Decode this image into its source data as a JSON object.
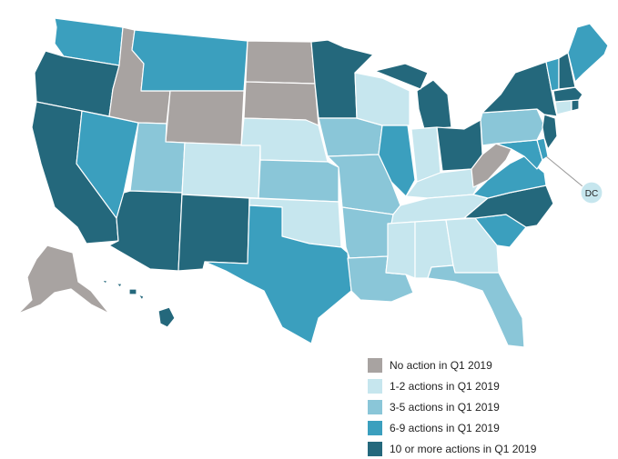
{
  "colors": {
    "none": "#a8a3a1",
    "tier1": "#c6e6ee",
    "tier2": "#8ac6d8",
    "tier3": "#3b9fbe",
    "tier4": "#24687c"
  },
  "legend": [
    {
      "label": "No action in Q1 2019",
      "tier": "none"
    },
    {
      "label": "1-2 actions in Q1 2019",
      "tier": "tier1"
    },
    {
      "label": "3-5 actions in Q1 2019",
      "tier": "tier2"
    },
    {
      "label": "6-9 actions in Q1 2019",
      "tier": "tier3"
    },
    {
      "label": "10 or more actions in Q1 2019",
      "tier": "tier4"
    }
  ],
  "dc_label": "DC",
  "states": {
    "WA": "tier3",
    "OR": "tier4",
    "CA": "tier4",
    "NV": "tier3",
    "ID": "none",
    "MT": "tier3",
    "WY": "none",
    "UT": "tier2",
    "AZ": "tier4",
    "CO": "tier1",
    "NM": "tier4",
    "ND": "none",
    "SD": "none",
    "NE": "tier1",
    "KS": "tier2",
    "OK": "tier1",
    "TX": "tier3",
    "MN": "tier4",
    "IA": "tier2",
    "MO": "tier2",
    "AR": "tier2",
    "LA": "tier2",
    "WI": "tier1",
    "IL": "tier3",
    "MI": "tier4",
    "IN": "tier1",
    "OH": "tier4",
    "KY": "tier1",
    "TN": "tier1",
    "MS": "tier1",
    "AL": "tier1",
    "GA": "tier1",
    "FL": "tier2",
    "SC": "tier3",
    "NC": "tier4",
    "VA": "tier3",
    "WV": "none",
    "MD": "tier3",
    "DE": "tier3",
    "PA": "tier2",
    "NJ": "tier4",
    "NY": "tier4",
    "CT": "tier1",
    "RI": "tier4",
    "MA": "tier4",
    "VT": "tier3",
    "NH": "tier4",
    "ME": "tier3",
    "AK": "none",
    "HI": "tier4",
    "DC": "tier1"
  }
}
